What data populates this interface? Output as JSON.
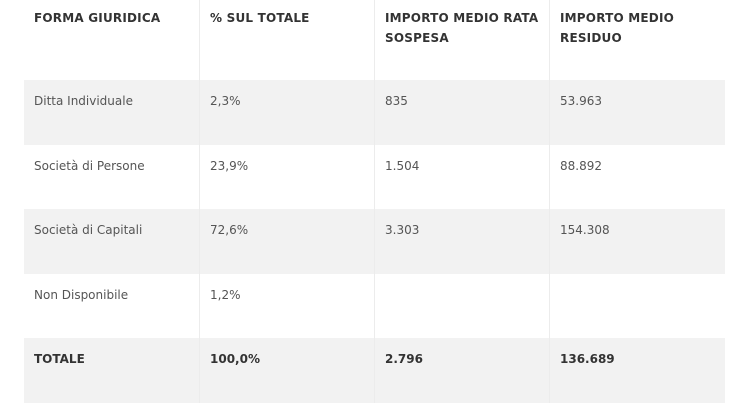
{
  "table": {
    "headers": [
      "FORMA GIURIDICA",
      "% SUL TOTALE",
      "IMPORTO MEDIO RATA SOSPESA",
      "IMPORTO MEDIO RESIDUO"
    ],
    "rows": [
      [
        "Ditta Individuale",
        "2,3%",
        "835",
        "53.963"
      ],
      [
        "Società di Persone",
        "23,9%",
        "1.504",
        "88.892"
      ],
      [
        "Società di Capitali",
        "72,6%",
        "3.303",
        "154.308"
      ],
      [
        "Non Disponibile",
        "1,2%",
        "",
        ""
      ]
    ],
    "total": [
      "TOTALE",
      "100,0%",
      "2.796",
      "136.689"
    ]
  }
}
